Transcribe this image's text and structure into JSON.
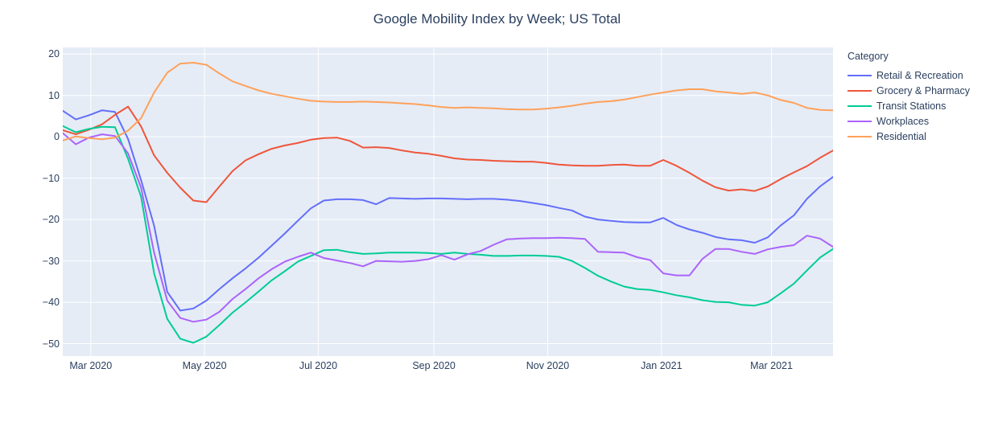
{
  "title": "Google Mobility Index by Week; US Total",
  "legend": {
    "title": "Category",
    "items": [
      {
        "label": "Retail & Recreation",
        "color": "#636EFA"
      },
      {
        "label": "Grocery & Pharmacy",
        "color": "#EF553B"
      },
      {
        "label": "Transit Stations",
        "color": "#00CC96"
      },
      {
        "label": "Workplaces",
        "color": "#AB63FA"
      },
      {
        "label": "Residential",
        "color": "#FFA15A"
      }
    ]
  },
  "y_axis": {
    "ticks": [
      {
        "label": "20",
        "value": 20
      },
      {
        "label": "10",
        "value": 10
      },
      {
        "label": "0",
        "value": 0
      },
      {
        "label": "−10",
        "value": -10
      },
      {
        "label": "−20",
        "value": -20
      },
      {
        "label": "−30",
        "value": -30
      },
      {
        "label": "−40",
        "value": -40
      },
      {
        "label": "−50",
        "value": -50
      }
    ]
  },
  "x_axis": {
    "ticks": [
      {
        "label": "Mar 2020",
        "day": 15
      },
      {
        "label": "May 2020",
        "day": 76
      },
      {
        "label": "Jul 2020",
        "day": 137
      },
      {
        "label": "Sep 2020",
        "day": 199
      },
      {
        "label": "Nov 2020",
        "day": 260
      },
      {
        "label": "Jan 2021",
        "day": 321
      },
      {
        "label": "Mar 2021",
        "day": 380
      }
    ],
    "span_days": 413
  },
  "chart_data": {
    "type": "line",
    "title": "Google Mobility Index by Week; US Total",
    "xlabel": "",
    "ylabel": "",
    "ylim": [
      -53,
      21.6
    ],
    "grid": true,
    "plot_background": "#E5ECF6",
    "grid_color": "#FFFFFF",
    "legend_position": "right",
    "x": [
      "2020-02-15",
      "2020-02-22",
      "2020-02-29",
      "2020-03-07",
      "2020-03-14",
      "2020-03-21",
      "2020-03-28",
      "2020-04-04",
      "2020-04-11",
      "2020-04-18",
      "2020-04-25",
      "2020-05-02",
      "2020-05-09",
      "2020-05-16",
      "2020-05-23",
      "2020-05-30",
      "2020-06-06",
      "2020-06-13",
      "2020-06-20",
      "2020-06-27",
      "2020-07-04",
      "2020-07-11",
      "2020-07-18",
      "2020-07-25",
      "2020-08-01",
      "2020-08-08",
      "2020-08-15",
      "2020-08-22",
      "2020-08-29",
      "2020-09-05",
      "2020-09-12",
      "2020-09-19",
      "2020-09-26",
      "2020-10-03",
      "2020-10-10",
      "2020-10-17",
      "2020-10-24",
      "2020-10-31",
      "2020-11-07",
      "2020-11-14",
      "2020-11-21",
      "2020-11-28",
      "2020-12-05",
      "2020-12-12",
      "2020-12-19",
      "2020-12-26",
      "2021-01-02",
      "2021-01-09",
      "2021-01-16",
      "2021-01-23",
      "2021-01-30",
      "2021-02-06",
      "2021-02-13",
      "2021-02-20",
      "2021-02-27",
      "2021-03-06",
      "2021-03-13",
      "2021-03-20",
      "2021-03-27",
      "2021-04-03"
    ],
    "series": [
      {
        "name": "Retail & Recreation",
        "color": "#636EFA",
        "values": [
          6.3,
          4.2,
          5.2,
          6.4,
          6.0,
          -0.5,
          -10.5,
          -21.5,
          -37.5,
          -42.0,
          -41.5,
          -39.6,
          -36.8,
          -34.2,
          -31.8,
          -29.2,
          -26.3,
          -23.4,
          -20.3,
          -17.3,
          -15.4,
          -15.1,
          -15.1,
          -15.3,
          -16.3,
          -14.8,
          -14.9,
          -15.0,
          -14.9,
          -14.9,
          -15.0,
          -15.1,
          -15.0,
          -15.0,
          -15.2,
          -15.5,
          -16.0,
          -16.5,
          -17.2,
          -17.8,
          -19.3,
          -20.0,
          -20.3,
          -20.6,
          -20.7,
          -20.7,
          -19.6,
          -21.3,
          -22.4,
          -23.2,
          -24.2,
          -24.8,
          -25.0,
          -25.6,
          -24.3,
          -21.4,
          -19.0,
          -15.0,
          -12.0,
          -9.7
        ]
      },
      {
        "name": "Grocery & Pharmacy",
        "color": "#EF553B",
        "values": [
          1.6,
          0.6,
          1.7,
          3.0,
          5.3,
          7.3,
          2.5,
          -4.5,
          -8.7,
          -12.3,
          -15.4,
          -15.8,
          -12.0,
          -8.3,
          -5.7,
          -4.2,
          -2.9,
          -2.1,
          -1.5,
          -0.7,
          -0.3,
          -0.2,
          -1.0,
          -2.6,
          -2.5,
          -2.7,
          -3.3,
          -3.8,
          -4.1,
          -4.6,
          -5.2,
          -5.5,
          -5.6,
          -5.8,
          -5.9,
          -6.0,
          -6.0,
          -6.3,
          -6.7,
          -6.9,
          -7.0,
          -7.0,
          -6.8,
          -6.7,
          -7.0,
          -7.0,
          -5.6,
          -7.0,
          -8.7,
          -10.6,
          -12.2,
          -13.0,
          -12.7,
          -13.1,
          -12.0,
          -10.2,
          -8.6,
          -7.1,
          -5.1,
          -3.3
        ]
      },
      {
        "name": "Transit Stations",
        "color": "#00CC96",
        "values": [
          2.6,
          1.1,
          1.9,
          2.4,
          2.3,
          -5.3,
          -14.5,
          -33.0,
          -44.0,
          -48.8,
          -49.8,
          -48.3,
          -45.5,
          -42.5,
          -40.0,
          -37.4,
          -34.7,
          -32.5,
          -30.2,
          -28.8,
          -27.4,
          -27.3,
          -27.9,
          -28.3,
          -28.2,
          -28.0,
          -28.0,
          -28.0,
          -28.1,
          -28.3,
          -28.0,
          -28.3,
          -28.5,
          -28.8,
          -28.8,
          -28.7,
          -28.7,
          -28.8,
          -29.0,
          -30.0,
          -31.7,
          -33.6,
          -35.0,
          -36.2,
          -36.8,
          -37.0,
          -37.6,
          -38.3,
          -38.8,
          -39.5,
          -39.9,
          -40.0,
          -40.6,
          -40.8,
          -40.0,
          -37.8,
          -35.5,
          -32.3,
          -29.2,
          -27.1
        ]
      },
      {
        "name": "Workplaces",
        "color": "#AB63FA",
        "values": [
          0.9,
          -1.8,
          -0.2,
          0.6,
          0.2,
          -4.0,
          -12.3,
          -28.0,
          -39.6,
          -43.8,
          -44.7,
          -44.2,
          -42.3,
          -39.2,
          -36.8,
          -34.2,
          -32.0,
          -30.2,
          -29.0,
          -28.0,
          -29.3,
          -29.9,
          -30.5,
          -31.3,
          -30.0,
          -30.1,
          -30.2,
          -30.0,
          -29.6,
          -28.6,
          -29.7,
          -28.4,
          -27.6,
          -26.1,
          -24.8,
          -24.6,
          -24.5,
          -24.5,
          -24.4,
          -24.5,
          -24.7,
          -27.8,
          -27.9,
          -28.0,
          -29.1,
          -29.8,
          -33.0,
          -33.5,
          -33.5,
          -29.5,
          -27.1,
          -27.1,
          -27.8,
          -28.3,
          -27.2,
          -26.6,
          -26.2,
          -23.9,
          -24.6,
          -26.6
        ]
      },
      {
        "name": "Residential",
        "color": "#FFA15A",
        "values": [
          -0.9,
          0.1,
          -0.3,
          -0.6,
          -0.2,
          1.5,
          4.5,
          10.7,
          15.5,
          17.7,
          17.9,
          17.4,
          15.3,
          13.4,
          12.3,
          11.2,
          10.4,
          9.8,
          9.2,
          8.7,
          8.5,
          8.4,
          8.4,
          8.5,
          8.4,
          8.3,
          8.1,
          7.9,
          7.6,
          7.2,
          7.0,
          7.1,
          7.0,
          6.9,
          6.7,
          6.6,
          6.6,
          6.8,
          7.1,
          7.5,
          8.0,
          8.4,
          8.6,
          9.0,
          9.6,
          10.2,
          10.7,
          11.2,
          11.5,
          11.5,
          11.0,
          10.7,
          10.4,
          10.7,
          10.0,
          8.9,
          8.2,
          7.0,
          6.5,
          6.4
        ]
      }
    ]
  }
}
